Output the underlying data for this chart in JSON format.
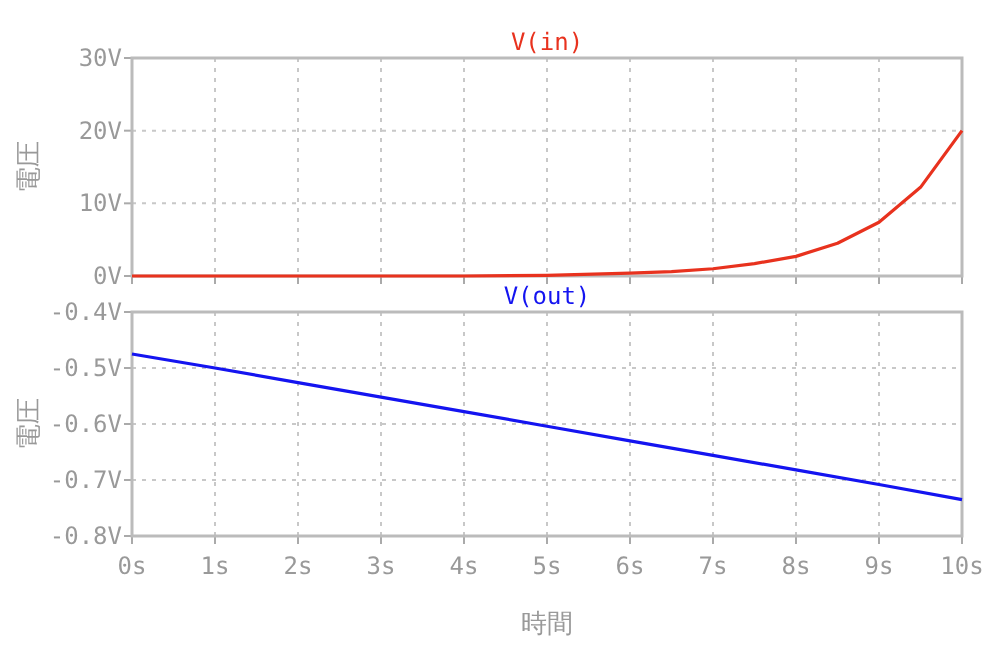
{
  "chart_data": [
    {
      "type": "line",
      "ylabel": "電圧",
      "x": [
        0,
        1,
        2,
        3,
        4,
        5,
        6,
        6.5,
        7,
        7.5,
        8,
        8.5,
        9,
        9.5,
        10
      ],
      "series": [
        {
          "name": "V(in)",
          "color": "#e8321e",
          "values": [
            0,
            0,
            0,
            0,
            0,
            0.1,
            0.4,
            0.6,
            1.0,
            1.7,
            2.7,
            4.5,
            7.4,
            12.2,
            20
          ]
        }
      ],
      "xlim": [
        0,
        10
      ],
      "xticks": [
        0,
        1,
        2,
        3,
        4,
        5,
        6,
        7,
        8,
        9,
        10
      ],
      "ylim": [
        0,
        30
      ],
      "yticks": [
        {
          "value": 0,
          "label": "0V"
        },
        {
          "value": 10,
          "label": "10V"
        },
        {
          "value": 20,
          "label": "20V"
        },
        {
          "value": 30,
          "label": "30V"
        }
      ],
      "grid": true,
      "tick_labels": "y"
    },
    {
      "type": "line",
      "ylabel": "電圧",
      "xlabel": "時間",
      "x": [
        0,
        1,
        2,
        3,
        4,
        5,
        6,
        7,
        8,
        9,
        10
      ],
      "series": [
        {
          "name": "V(out)",
          "color": "#1414f0",
          "values": [
            -0.475,
            -0.5,
            -0.526,
            -0.552,
            -0.578,
            -0.604,
            -0.63,
            -0.656,
            -0.682,
            -0.708,
            -0.735
          ]
        }
      ],
      "xlim": [
        0,
        10
      ],
      "xticks": [
        {
          "value": 0,
          "label": "0s"
        },
        {
          "value": 1,
          "label": "1s"
        },
        {
          "value": 2,
          "label": "2s"
        },
        {
          "value": 3,
          "label": "3s"
        },
        {
          "value": 4,
          "label": "4s"
        },
        {
          "value": 5,
          "label": "5s"
        },
        {
          "value": 6,
          "label": "6s"
        },
        {
          "value": 7,
          "label": "7s"
        },
        {
          "value": 8,
          "label": "8s"
        },
        {
          "value": 9,
          "label": "9s"
        },
        {
          "value": 10,
          "label": "10s"
        }
      ],
      "ylim": [
        -0.8,
        -0.4
      ],
      "yticks": [
        {
          "value": -0.4,
          "label": "-0.4V"
        },
        {
          "value": -0.5,
          "label": "-0.5V"
        },
        {
          "value": -0.6,
          "label": "-0.6V"
        },
        {
          "value": -0.7,
          "label": "-0.7V"
        },
        {
          "value": -0.8,
          "label": "-0.8V"
        }
      ],
      "grid": true
    }
  ]
}
